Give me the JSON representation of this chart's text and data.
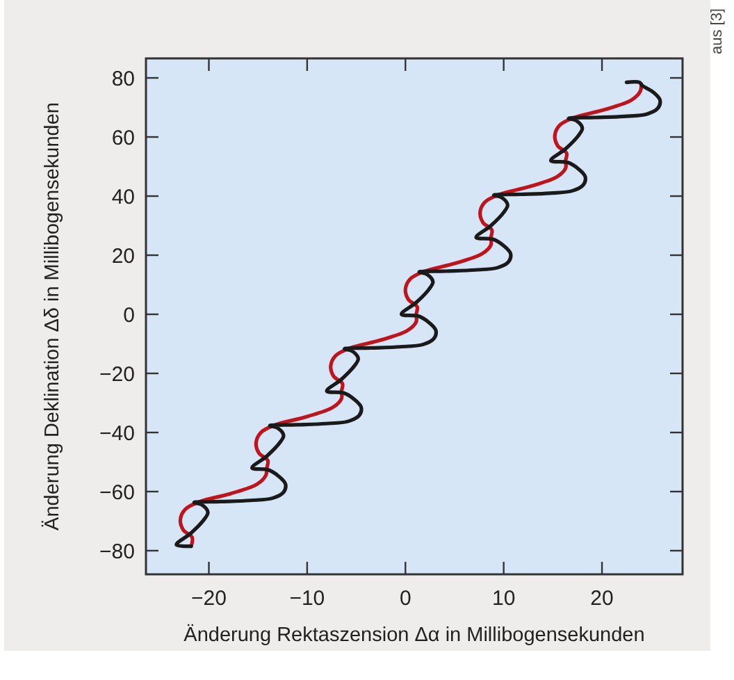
{
  "chart_data": {
    "type": "line",
    "xlabel": "Änderung Rektaszension Δα in Millibogensekunden",
    "ylabel": "Änderung Deklination Δδ in Millibogensekunden",
    "annotations": [
      "aus [3]"
    ],
    "xlim": [
      -26.4,
      28.2
    ],
    "ylim": [
      -88,
      86.6
    ],
    "xticks": [
      {
        "value": -20,
        "label": "−20"
      },
      {
        "value": -10,
        "label": "−10"
      },
      0,
      10,
      20
    ],
    "yticks": [
      {
        "value": -80,
        "label": "−80"
      },
      {
        "value": -60,
        "label": "−60"
      },
      {
        "value": -40,
        "label": "−40"
      },
      {
        "value": -20,
        "label": "−20"
      },
      0,
      20,
      40,
      60,
      80
    ],
    "grid": false,
    "line_style": "solid",
    "series": [
      {
        "color": "#c0141c",
        "x": [
          -21.8,
          -21.7,
          -22.6,
          -22.9,
          -22.4,
          -21,
          -17.8,
          -15.1,
          -14.2,
          -14.1,
          -14,
          -14.9,
          -15.2,
          -14.7,
          -13.3,
          -10.1,
          -7.4,
          -6.5,
          -6.5,
          -6.4,
          -7.3,
          -7.6,
          -7.1,
          -5.7,
          -2.5,
          0.2,
          1.1,
          1.1,
          1.2,
          0.3,
          0,
          0.5,
          1.9,
          5.1,
          7.8,
          8.7,
          8.7,
          8.8,
          7.9,
          7.6,
          8.1,
          9.5,
          12.7,
          15.4,
          16.3,
          16.3,
          16.4,
          15.5,
          15.2,
          15.7,
          17.1,
          20.3,
          23,
          23.9,
          24
        ],
        "values": [
          -78.5,
          -75.5,
          -73,
          -69.5,
          -66,
          -63.5,
          -60.7,
          -57.5,
          -54.5,
          -52,
          -49.5,
          -47,
          -43.5,
          -40,
          -37.5,
          -34.7,
          -31.5,
          -28.5,
          -26,
          -23.5,
          -21,
          -17.5,
          -14,
          -11.5,
          -8.7,
          -5.5,
          -2.5,
          0,
          2.5,
          5,
          8.5,
          12,
          14.5,
          17.3,
          20.5,
          23.5,
          26,
          28.5,
          31,
          34.5,
          38,
          40.5,
          43.3,
          46.5,
          49.5,
          52,
          54.5,
          57,
          60.5,
          64,
          66.5,
          69.3,
          72.5,
          75.5,
          78
        ]
      },
      {
        "color": "#1a1a1a",
        "x": [
          -21.8,
          -23.3,
          -21.8,
          -20.5,
          -20.1,
          -20.7,
          -21.5,
          -18.8,
          -15.8,
          -13.5,
          -12.4,
          -12.2,
          -12.9,
          -14,
          -15.6,
          -14.1,
          -12.8,
          -12.4,
          -13,
          -13.8,
          -11.1,
          -8.1,
          -5.8,
          -4.7,
          -4.5,
          -5.2,
          -6.3,
          -8,
          -6.5,
          -5.2,
          -4.8,
          -5.4,
          -6.2,
          -3.5,
          -0.5,
          1.8,
          2.9,
          3.1,
          2.4,
          1.3,
          -0.4,
          1.1,
          2.4,
          2.8,
          2.2,
          1.4,
          4.1,
          7.1,
          9.4,
          10.5,
          10.7,
          10,
          8.9,
          7.2,
          8.7,
          10,
          10.4,
          9.8,
          9,
          11.7,
          14.7,
          17,
          18.1,
          18.3,
          17.6,
          16.5,
          14.8,
          16.3,
          17.6,
          18,
          17.4,
          16.6,
          19.3,
          22.3,
          24.6,
          25.7,
          25.9,
          25.2,
          24.1,
          23.8,
          22.5
        ],
        "values": [
          -78.5,
          -78,
          -74,
          -69.5,
          -67,
          -64.5,
          -63.7,
          -63.4,
          -63,
          -62.2,
          -60.2,
          -57.5,
          -54.8,
          -52.6,
          -52,
          -48,
          -43.5,
          -41,
          -38.5,
          -37.7,
          -37.4,
          -37,
          -36.2,
          -34.2,
          -31.5,
          -28.8,
          -26.6,
          -26,
          -22,
          -17.5,
          -15,
          -12.5,
          -11.7,
          -11.4,
          -11,
          -10.2,
          -8.2,
          -5.5,
          -2.8,
          -0.6,
          0,
          4,
          8.5,
          11,
          13.5,
          14.3,
          14.6,
          15,
          15.8,
          17.8,
          20.5,
          23.2,
          25.4,
          26,
          30,
          34.5,
          37,
          39.5,
          40.3,
          40.6,
          41,
          41.8,
          43.8,
          46.5,
          49.2,
          51.4,
          52,
          56,
          60.5,
          63,
          65.5,
          66.3,
          66.6,
          67,
          67.8,
          69.8,
          72.5,
          75.2,
          77.4,
          78.5,
          78.5
        ]
      }
    ]
  }
}
